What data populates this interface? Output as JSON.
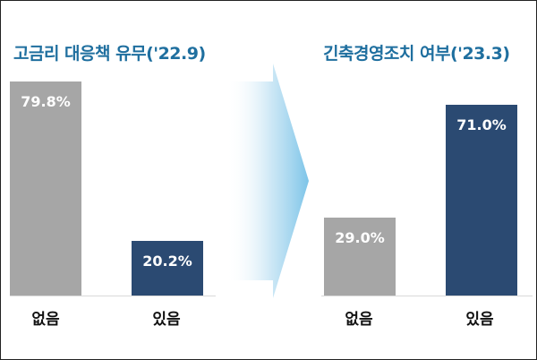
{
  "colors": {
    "none": "#a6a6a6",
    "yes": "#2b4a72",
    "title": "#1f6f9f",
    "arrow": "#7cc4e8"
  },
  "chart_data": [
    {
      "type": "bar",
      "title": "고금리 대응책 유무('22.9)",
      "categories": [
        "없음",
        "있음"
      ],
      "values": [
        79.8,
        20.2
      ],
      "value_labels": [
        "79.8%",
        "20.2%"
      ],
      "ylim": [
        0,
        100
      ]
    },
    {
      "type": "bar",
      "title": "긴축경영조치 여부('23.3)",
      "categories": [
        "없음",
        "있음"
      ],
      "values": [
        29.0,
        71.0
      ],
      "value_labels": [
        "29.0%",
        "71.0%"
      ],
      "ylim": [
        0,
        100
      ]
    }
  ]
}
